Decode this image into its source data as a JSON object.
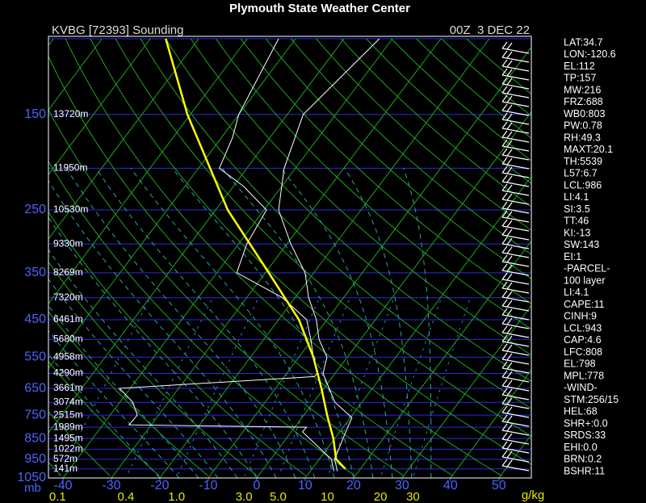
{
  "chart_data": {
    "type": "skew-t",
    "title": "Plymouth State Weather Center",
    "station": "KVBG [72393] Sounding",
    "time": "00Z  3 DEC 22",
    "ylim": [
      1050,
      100
    ],
    "yticks": [
      150,
      250,
      350,
      450,
      550,
      650,
      750,
      850,
      950,
      1050
    ],
    "ylabel": "mb",
    "minor_isobars": [
      100,
      200,
      300,
      400,
      500,
      600,
      700,
      800,
      900,
      1000
    ],
    "xlim": [
      -43,
      56.7
    ],
    "xticks": [
      -40,
      -30,
      -20,
      -10,
      0,
      10,
      20,
      30,
      40,
      50
    ],
    "mixing_ratios": [
      0.1,
      0.4,
      1.0,
      3.0,
      5.0,
      10,
      20,
      30
    ],
    "mixing_ratio_labels": [
      "0.1",
      "0.4",
      "1.0",
      "3.0",
      "5.0",
      "10",
      "20",
      "30"
    ],
    "mixing_unit": "g/kg",
    "heights": [
      {
        "pressure": 150,
        "label": "13720m"
      },
      {
        "pressure": 200,
        "label": "11950m"
      },
      {
        "pressure": 250,
        "label": "10530m"
      },
      {
        "pressure": 300,
        "label": "9330m"
      },
      {
        "pressure": 350,
        "label": "8269m"
      },
      {
        "pressure": 400,
        "label": "7320m"
      },
      {
        "pressure": 450,
        "label": "6461m"
      },
      {
        "pressure": 500,
        "label": "5680m"
      },
      {
        "pressure": 550,
        "label": "4958m"
      },
      {
        "pressure": 600,
        "label": "4290m"
      },
      {
        "pressure": 650,
        "label": "3661m"
      },
      {
        "pressure": 700,
        "label": "3074m"
      },
      {
        "pressure": 750,
        "label": "2515m"
      },
      {
        "pressure": 800,
        "label": "1989m"
      },
      {
        "pressure": 850,
        "label": "1495m"
      },
      {
        "pressure": 900,
        "label": "1022m"
      },
      {
        "pressure": 950,
        "label": "572m"
      },
      {
        "pressure": 1000,
        "label": "141m"
      }
    ],
    "series": [
      {
        "color": "#ffffff",
        "pressure": [
          1013,
          950,
          850,
          760,
          700,
          600,
          550,
          500,
          450,
          400,
          350,
          300,
          250,
          200,
          150,
          100
        ],
        "values": [
          15.6,
          13.2,
          11.7,
          10.3,
          4.4,
          -2.5,
          -4.2,
          -8.6,
          -12.2,
          -17.2,
          -21.8,
          -29.2,
          -37,
          -42.3,
          -46.7,
          -42.7
        ]
      },
      {
        "color": "#ffffff",
        "pressure": [
          1013,
          950,
          820,
          800,
          790,
          750,
          700,
          650,
          610,
          600,
          550,
          500,
          450,
          400,
          350,
          300,
          250,
          220,
          200,
          170,
          150,
          100
        ],
        "values": [
          14.9,
          12.5,
          2.3,
          2.4,
          -34.6,
          -34.4,
          -37.3,
          -42.2,
          -3.8,
          -3.7,
          -7,
          -10.3,
          -14.2,
          -22.6,
          -35.9,
          -38.3,
          -39.5,
          -48,
          -55.7,
          -57.7,
          -60,
          -63.5
        ]
      },
      {
        "color": "#ffff00",
        "pressure": [
          1000,
          950,
          850,
          750,
          650,
          550,
          450,
          350,
          250,
          150,
          100
        ],
        "values": [
          16.9,
          13.5,
          9.7,
          4.8,
          -0.5,
          -7,
          -15.8,
          -29.3,
          -47.5,
          -70.6,
          -86.8
        ]
      }
    ],
    "stats": [
      "LAT:34.7",
      "LON:-120.6",
      "EL:112",
      "TP:157",
      "MW:216",
      "FRZ:688",
      "WB0:803",
      "PW:0.78",
      "RH:49.3",
      "MAXT:20.1",
      "TH:5539",
      "L57:6.7",
      "LCL:986",
      "LI:4.1",
      "SI:3.5",
      "TT:46",
      "KI:-13",
      "SW:143",
      "EI:1",
      "-PARCEL-",
      "100 layer",
      "LI:4.1",
      "CAPE:11",
      "CINH:9",
      "LCL:943",
      "CAP:4.6",
      "LFC:808",
      "EL:798",
      "MPL:778",
      "-WIND-",
      "STM:256/15",
      "HEL:68",
      "SHR+:0.0",
      "SRDS:33",
      "EHI:0.0",
      "BRN:0.2",
      "BSHR:11"
    ]
  }
}
